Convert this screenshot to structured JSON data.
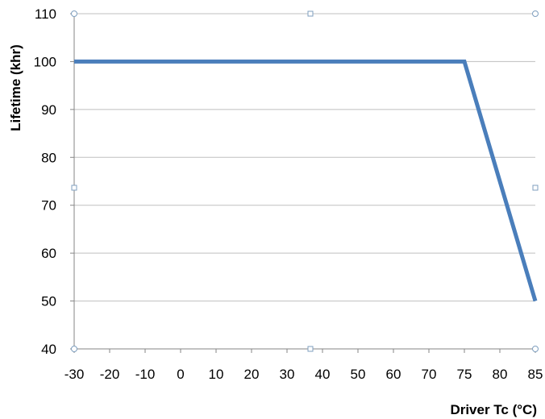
{
  "chart_data": {
    "type": "line",
    "xlabel": "Driver Tc (°C)",
    "ylabel": "Lifetime (khr)",
    "x_ticks": [
      -30,
      -20,
      -10,
      0,
      10,
      20,
      30,
      40,
      50,
      60,
      70,
      75,
      80,
      85
    ],
    "y_ticks": [
      40,
      50,
      60,
      70,
      80,
      90,
      100,
      110
    ],
    "xlim": [
      -30,
      85
    ],
    "ylim": [
      40,
      110
    ],
    "grid": "horizontal",
    "legend": "none",
    "series": [
      {
        "color": "#4a7ebb",
        "points": [
          {
            "x": -30,
            "y": 100
          },
          {
            "x": 75,
            "y": 100
          },
          {
            "x": 85,
            "y": 50
          }
        ]
      }
    ],
    "colors": {
      "line": "#4a7ebb",
      "grid": "#bfbfbf",
      "axis": "#868686",
      "handle": "#7f9fbf"
    }
  }
}
